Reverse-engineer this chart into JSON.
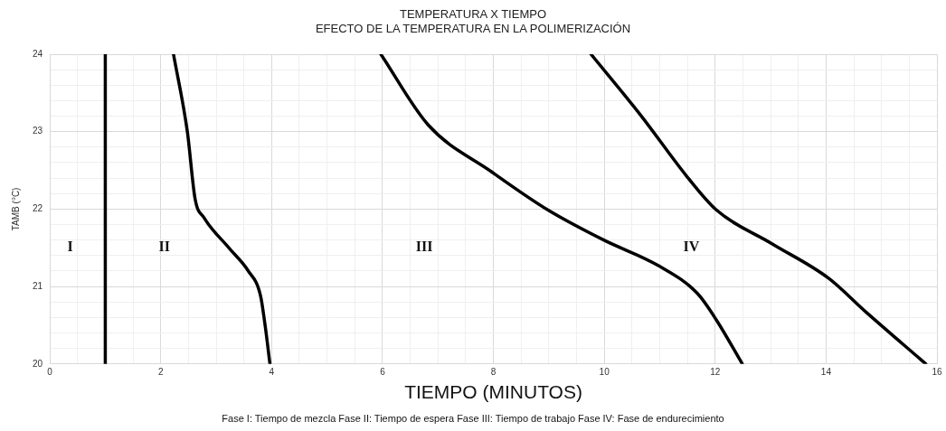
{
  "chart_data": {
    "type": "line",
    "title": "TEMPERATURA X TIEMPO",
    "subtitle": "EFECTO DE LA TEMPERATURA EN LA POLIMERIZACIÓN",
    "xlabel": "TIEMPO (MINUTOS)",
    "ylabel": "TAMB (°C)",
    "series": [
      {
        "color": "#000000",
        "x": [
          1,
          1
        ],
        "values": [
          20,
          24
        ]
      },
      {
        "color": "#000000",
        "x": [
          2.23,
          2.48,
          2.62,
          2.78,
          3.24,
          3.58,
          3.8,
          3.88,
          3.97
        ],
        "values": [
          24,
          23,
          22.13,
          21.89,
          21.49,
          21.2,
          20.88,
          20.51,
          20
        ]
      },
      {
        "color": "#000000",
        "x": [
          5.97,
          6.82,
          7.97,
          8.98,
          9.99,
          11.0,
          11.68,
          12.02,
          12.49
        ],
        "values": [
          24,
          23.09,
          22.48,
          21.99,
          21.6,
          21.26,
          20.91,
          20.57,
          20
        ]
      },
      {
        "color": "#000000",
        "x": [
          9.76,
          10.67,
          11.48,
          12.02,
          13.03,
          14.04,
          14.72,
          15.8
        ],
        "values": [
          24,
          23.2,
          22.43,
          21.99,
          21.55,
          21.11,
          20.67,
          20
        ]
      }
    ],
    "xlim": [
      0,
      16
    ],
    "xticks": [
      0,
      {
        "value": 0.5,
        "label": null
      },
      {
        "value": 1.5,
        "label": null
      },
      2,
      {
        "value": 2.5,
        "label": null
      },
      {
        "value": 3,
        "label": null
      },
      {
        "value": 3.5,
        "label": null
      },
      4,
      {
        "value": 4.5,
        "label": null
      },
      {
        "value": 5,
        "label": null
      },
      {
        "value": 5.5,
        "label": null
      },
      6,
      {
        "value": 6.5,
        "label": null
      },
      {
        "value": 7,
        "label": null
      },
      {
        "value": 7.5,
        "label": null
      },
      8,
      {
        "value": 8.5,
        "label": null
      },
      {
        "value": 9,
        "label": null
      },
      {
        "value": 9.5,
        "label": null
      },
      10,
      {
        "value": 10.5,
        "label": null
      },
      {
        "value": 11,
        "label": null
      },
      {
        "value": 11.5,
        "label": null
      },
      12,
      {
        "value": 12.5,
        "label": null
      },
      {
        "value": 13,
        "label": null
      },
      {
        "value": 13.5,
        "label": null
      },
      14,
      {
        "value": 14.5,
        "label": null
      },
      {
        "value": 15,
        "label": null
      },
      {
        "value": 15.5,
        "label": null
      },
      16
    ],
    "ylim": [
      20,
      24
    ],
    "yticks": [
      20,
      {
        "value": 20.2,
        "label": null
      },
      {
        "value": 20.4,
        "label": null
      },
      {
        "value": 20.6,
        "label": null
      },
      {
        "value": 20.8,
        "label": null
      },
      21,
      {
        "value": 21.2,
        "label": null
      },
      {
        "value": 21.4,
        "label": null
      },
      {
        "value": 21.6,
        "label": null
      },
      {
        "value": 21.8,
        "label": null
      },
      22,
      {
        "value": 22.2,
        "label": null
      },
      {
        "value": 22.4,
        "label": null
      },
      {
        "value": 22.6,
        "label": null
      },
      {
        "value": 22.8,
        "label": null
      },
      23,
      {
        "value": 23.2,
        "label": null
      },
      {
        "value": 23.4,
        "label": null
      },
      {
        "value": 23.6,
        "label": null
      },
      {
        "value": 23.8,
        "label": null
      },
      24
    ],
    "grid": true,
    "marker": "none",
    "line_style": "solid",
    "annotations": [
      "I",
      "II",
      "III",
      "IV",
      "Fase I: Tiempo de mezcla  Fase II: Tiempo de espera  Fase III: Tiempo de trabajo  Fase IV: Fase de endurecimiento"
    ]
  }
}
